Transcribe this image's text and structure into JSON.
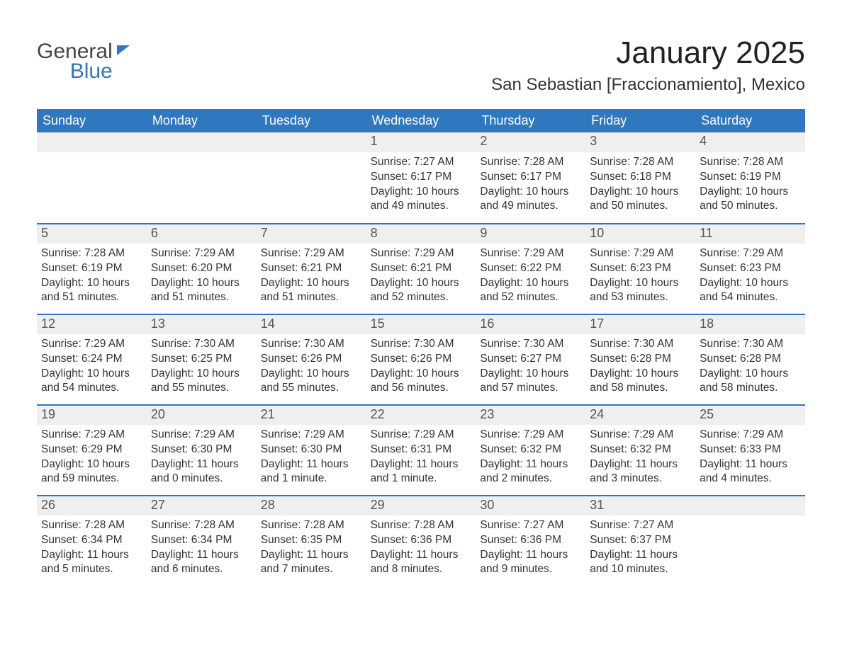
{
  "logo": {
    "word1": "General",
    "word2": "Blue"
  },
  "title": "January 2025",
  "subtitle": "San Sebastian [Fraccionamiento], Mexico",
  "colors": {
    "header_blue": "#2f78bf",
    "daynum_bg": "#efefef",
    "text": "#333333",
    "background": "#ffffff"
  },
  "weekdays": [
    "Sunday",
    "Monday",
    "Tuesday",
    "Wednesday",
    "Thursday",
    "Friday",
    "Saturday"
  ],
  "weeks": [
    [
      null,
      null,
      null,
      {
        "day": "1",
        "sunrise": "7:27 AM",
        "sunset": "6:17 PM",
        "daylight": "10 hours and 49 minutes."
      },
      {
        "day": "2",
        "sunrise": "7:28 AM",
        "sunset": "6:17 PM",
        "daylight": "10 hours and 49 minutes."
      },
      {
        "day": "3",
        "sunrise": "7:28 AM",
        "sunset": "6:18 PM",
        "daylight": "10 hours and 50 minutes."
      },
      {
        "day": "4",
        "sunrise": "7:28 AM",
        "sunset": "6:19 PM",
        "daylight": "10 hours and 50 minutes."
      }
    ],
    [
      {
        "day": "5",
        "sunrise": "7:28 AM",
        "sunset": "6:19 PM",
        "daylight": "10 hours and 51 minutes."
      },
      {
        "day": "6",
        "sunrise": "7:29 AM",
        "sunset": "6:20 PM",
        "daylight": "10 hours and 51 minutes."
      },
      {
        "day": "7",
        "sunrise": "7:29 AM",
        "sunset": "6:21 PM",
        "daylight": "10 hours and 51 minutes."
      },
      {
        "day": "8",
        "sunrise": "7:29 AM",
        "sunset": "6:21 PM",
        "daylight": "10 hours and 52 minutes."
      },
      {
        "day": "9",
        "sunrise": "7:29 AM",
        "sunset": "6:22 PM",
        "daylight": "10 hours and 52 minutes."
      },
      {
        "day": "10",
        "sunrise": "7:29 AM",
        "sunset": "6:23 PM",
        "daylight": "10 hours and 53 minutes."
      },
      {
        "day": "11",
        "sunrise": "7:29 AM",
        "sunset": "6:23 PM",
        "daylight": "10 hours and 54 minutes."
      }
    ],
    [
      {
        "day": "12",
        "sunrise": "7:29 AM",
        "sunset": "6:24 PM",
        "daylight": "10 hours and 54 minutes."
      },
      {
        "day": "13",
        "sunrise": "7:30 AM",
        "sunset": "6:25 PM",
        "daylight": "10 hours and 55 minutes."
      },
      {
        "day": "14",
        "sunrise": "7:30 AM",
        "sunset": "6:26 PM",
        "daylight": "10 hours and 55 minutes."
      },
      {
        "day": "15",
        "sunrise": "7:30 AM",
        "sunset": "6:26 PM",
        "daylight": "10 hours and 56 minutes."
      },
      {
        "day": "16",
        "sunrise": "7:30 AM",
        "sunset": "6:27 PM",
        "daylight": "10 hours and 57 minutes."
      },
      {
        "day": "17",
        "sunrise": "7:30 AM",
        "sunset": "6:28 PM",
        "daylight": "10 hours and 58 minutes."
      },
      {
        "day": "18",
        "sunrise": "7:30 AM",
        "sunset": "6:28 PM",
        "daylight": "10 hours and 58 minutes."
      }
    ],
    [
      {
        "day": "19",
        "sunrise": "7:29 AM",
        "sunset": "6:29 PM",
        "daylight": "10 hours and 59 minutes."
      },
      {
        "day": "20",
        "sunrise": "7:29 AM",
        "sunset": "6:30 PM",
        "daylight": "11 hours and 0 minutes."
      },
      {
        "day": "21",
        "sunrise": "7:29 AM",
        "sunset": "6:30 PM",
        "daylight": "11 hours and 1 minute."
      },
      {
        "day": "22",
        "sunrise": "7:29 AM",
        "sunset": "6:31 PM",
        "daylight": "11 hours and 1 minute."
      },
      {
        "day": "23",
        "sunrise": "7:29 AM",
        "sunset": "6:32 PM",
        "daylight": "11 hours and 2 minutes."
      },
      {
        "day": "24",
        "sunrise": "7:29 AM",
        "sunset": "6:32 PM",
        "daylight": "11 hours and 3 minutes."
      },
      {
        "day": "25",
        "sunrise": "7:29 AM",
        "sunset": "6:33 PM",
        "daylight": "11 hours and 4 minutes."
      }
    ],
    [
      {
        "day": "26",
        "sunrise": "7:28 AM",
        "sunset": "6:34 PM",
        "daylight": "11 hours and 5 minutes."
      },
      {
        "day": "27",
        "sunrise": "7:28 AM",
        "sunset": "6:34 PM",
        "daylight": "11 hours and 6 minutes."
      },
      {
        "day": "28",
        "sunrise": "7:28 AM",
        "sunset": "6:35 PM",
        "daylight": "11 hours and 7 minutes."
      },
      {
        "day": "29",
        "sunrise": "7:28 AM",
        "sunset": "6:36 PM",
        "daylight": "11 hours and 8 minutes."
      },
      {
        "day": "30",
        "sunrise": "7:27 AM",
        "sunset": "6:36 PM",
        "daylight": "11 hours and 9 minutes."
      },
      {
        "day": "31",
        "sunrise": "7:27 AM",
        "sunset": "6:37 PM",
        "daylight": "11 hours and 10 minutes."
      },
      null
    ]
  ],
  "labels": {
    "sunrise": "Sunrise: ",
    "sunset": "Sunset: ",
    "daylight": "Daylight: "
  }
}
